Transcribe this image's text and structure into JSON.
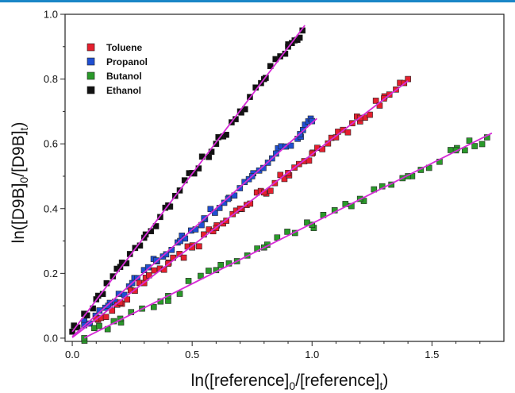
{
  "chart_data": {
    "type": "scatter",
    "title": "",
    "xlabel": {
      "prefix": "ln([reference]",
      "sub1": "0",
      "mid": "/[reference]",
      "sub2": "t",
      "suffix": ")"
    },
    "ylabel": {
      "prefix": "ln([D9B]",
      "sub1": "0",
      "mid": "/[D9B]",
      "sub2": "t",
      "suffix": ")"
    },
    "xlim": [
      -0.03,
      1.8
    ],
    "ylim": [
      -0.01,
      1.0
    ],
    "xticks": [
      "0.0",
      "0.5",
      "1.0",
      "1.5"
    ],
    "yticks": [
      "0.0",
      "0.2",
      "0.4",
      "0.6",
      "0.8",
      "1.0"
    ],
    "legend_position": "top-left",
    "fit_line_color": "#d62ad6",
    "series": [
      {
        "name": "Toluene",
        "color": "#e5202e",
        "fit": {
          "slope": 0.566,
          "intercept": 0.002,
          "x_range": [
            0.0,
            1.4
          ]
        },
        "x": [
          0.1,
          0.2,
          0.3,
          0.4,
          0.5,
          0.6,
          0.7,
          0.8,
          0.9,
          1.0,
          1.1,
          1.2,
          1.3,
          1.4
        ],
        "y": [
          0.06,
          0.11,
          0.17,
          0.23,
          0.28,
          0.34,
          0.4,
          0.45,
          0.51,
          0.57,
          0.62,
          0.68,
          0.74,
          0.8
        ]
      },
      {
        "name": "Propanol",
        "color": "#1f4fd1",
        "fit": {
          "slope": 0.66,
          "intercept": 0.005,
          "x_range": [
            0.0,
            1.02
          ]
        },
        "x": [
          0.05,
          0.15,
          0.25,
          0.35,
          0.45,
          0.55,
          0.65,
          0.75,
          0.85,
          0.95,
          1.0
        ],
        "y": [
          0.04,
          0.1,
          0.17,
          0.24,
          0.3,
          0.37,
          0.43,
          0.5,
          0.57,
          0.63,
          0.67
        ]
      },
      {
        "name": "Butanol",
        "color": "#2a9a2a",
        "fit": {
          "slope": 0.372,
          "intercept": -0.018,
          "x_range": [
            0.05,
            1.75
          ]
        },
        "x": [
          0.05,
          0.2,
          0.4,
          0.6,
          0.8,
          1.0,
          1.2,
          1.4,
          1.6,
          1.73
        ],
        "y": [
          0.0,
          0.06,
          0.13,
          0.21,
          0.28,
          0.35,
          0.43,
          0.5,
          0.58,
          0.62
        ]
      },
      {
        "name": "Ethanol",
        "color": "#111111",
        "fit": {
          "slope": 0.975,
          "intercept": 0.02,
          "x_range": [
            0.0,
            0.97
          ]
        },
        "x": [
          0.0,
          0.1,
          0.2,
          0.3,
          0.4,
          0.5,
          0.6,
          0.7,
          0.8,
          0.9,
          0.96
        ],
        "y": [
          0.02,
          0.12,
          0.22,
          0.31,
          0.41,
          0.51,
          0.6,
          0.7,
          0.8,
          0.9,
          0.95
        ]
      }
    ]
  }
}
